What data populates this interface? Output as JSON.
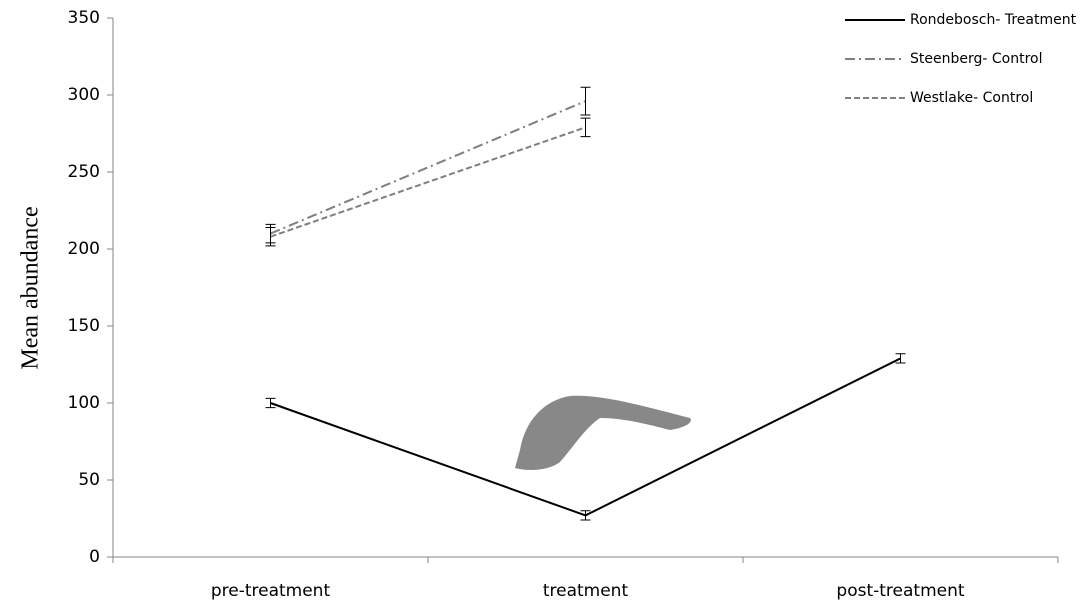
{
  "chart_data": {
    "type": "line",
    "y_label": "Mean abundance",
    "categories": [
      "pre-treatment",
      "treatment",
      "post-treatment"
    ],
    "series": [
      {
        "name": "Rondebosch- Treatment",
        "color": "#000000",
        "dash": "solid",
        "values": [
          100,
          27,
          129
        ],
        "errors": [
          3,
          3,
          3
        ]
      },
      {
        "name": "Steenberg- Control",
        "color": "#7f7f7f",
        "dash": "dashdot",
        "values": [
          210,
          296,
          null
        ],
        "errors": [
          6,
          9,
          null
        ]
      },
      {
        "name": "Westlake- Control",
        "color": "#7f7f7f",
        "dash": "dashed",
        "values": [
          208,
          279,
          null
        ],
        "errors": [
          6,
          6,
          null
        ]
      }
    ],
    "ylim": [
      0,
      350
    ],
    "yticks": [
      0,
      50,
      100,
      150,
      200,
      250,
      300,
      350
    ],
    "grid": false,
    "legend": "top-right"
  }
}
